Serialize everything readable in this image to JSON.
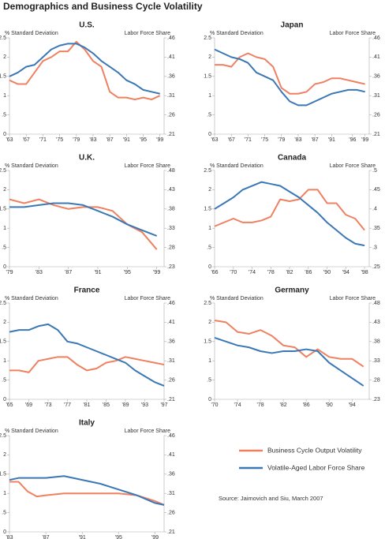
{
  "title": "Demographics and Business Cycle Volatility",
  "legend": [
    {
      "name": "Business Cycle Output Volatility",
      "color": "#ef8060"
    },
    {
      "name": "Volatile-Aged Labor Force Share",
      "color": "#3a78b5"
    }
  ],
  "source": "Source: Jaimovich and Siu, March 2007",
  "chart_data": [
    {
      "type": "line",
      "title": "U.S.",
      "ylabel": "% Standard Deviation",
      "y2label": "Labor Force Share",
      "x": [
        1963,
        1965,
        1967,
        1969,
        1971,
        1973,
        1975,
        1977,
        1979,
        1981,
        1983,
        1985,
        1987,
        1989,
        1991,
        1993,
        1995,
        1997,
        1999
      ],
      "xlim": [
        1963,
        2000
      ],
      "xticks": [
        {
          "value": 1963,
          "label": "'63"
        },
        {
          "value": 1967,
          "label": "'67"
        },
        {
          "value": 1971,
          "label": "'71"
        },
        {
          "value": 1975,
          "label": "'75"
        },
        {
          "value": 1979,
          "label": "'79"
        },
        {
          "value": 1983,
          "label": "'83"
        },
        {
          "value": 1987,
          "label": "'87"
        },
        {
          "value": 1991,
          "label": "'91"
        },
        {
          "value": 1995,
          "label": "'95"
        },
        {
          "value": 1999,
          "label": "'99"
        }
      ],
      "ylim": [
        0,
        2.5
      ],
      "yticks": [
        0,
        {
          "value": 0.5,
          "label": ".5"
        },
        1,
        1.5,
        2,
        2.5
      ],
      "y2lim": [
        0.21,
        0.46
      ],
      "y2ticks": [
        {
          "value": 0.21,
          "label": ".21"
        },
        {
          "value": 0.26,
          "label": ".26"
        },
        {
          "value": 0.31,
          "label": ".31"
        },
        {
          "value": 0.36,
          "label": ".36"
        },
        {
          "value": 0.41,
          "label": ".41"
        },
        {
          "value": 0.46,
          "label": ".46"
        }
      ],
      "series": [
        {
          "color": "#ef8060",
          "values": [
            1.4,
            1.3,
            1.3,
            1.6,
            1.9,
            2.0,
            2.15,
            2.15,
            2.4,
            2.2,
            1.9,
            1.75,
            1.1,
            0.95,
            0.95,
            0.9,
            0.95,
            0.9,
            1.0
          ]
        },
        {
          "color": "#3a78b5",
          "axis": "y2",
          "values": [
            0.36,
            0.37,
            0.385,
            0.39,
            0.41,
            0.43,
            0.44,
            0.445,
            0.445,
            0.435,
            0.42,
            0.4,
            0.385,
            0.37,
            0.35,
            0.34,
            0.325,
            0.32,
            0.315
          ]
        }
      ]
    },
    {
      "type": "line",
      "title": "Japan",
      "ylabel": "% Standard Deviation",
      "y2label": "Labor Force Share",
      "x": [
        1963,
        1965,
        1967,
        1969,
        1971,
        1973,
        1975,
        1977,
        1979,
        1981,
        1983,
        1985,
        1987,
        1989,
        1991,
        1993,
        1995,
        1997,
        1999
      ],
      "xlim": [
        1963,
        2000
      ],
      "xticks": [
        {
          "value": 1963,
          "label": "'63"
        },
        {
          "value": 1967,
          "label": "'67"
        },
        {
          "value": 1971,
          "label": "'71"
        },
        {
          "value": 1975,
          "label": "'75"
        },
        {
          "value": 1979,
          "label": "'79"
        },
        {
          "value": 1983,
          "label": "'83"
        },
        {
          "value": 1987,
          "label": "'87"
        },
        {
          "value": 1991,
          "label": "'91"
        },
        {
          "value": 1996,
          "label": "'96"
        },
        {
          "value": 1999,
          "label": "'99"
        }
      ],
      "ylim": [
        0,
        2.5
      ],
      "yticks": [
        0,
        {
          "value": 0.5,
          "label": ".5"
        },
        1,
        1.5,
        2,
        2.5
      ],
      "y2lim": [
        0.21,
        0.46
      ],
      "y2ticks": [
        {
          "value": 0.21,
          "label": ".21"
        },
        {
          "value": 0.26,
          "label": ".26"
        },
        {
          "value": 0.31,
          "label": ".31"
        },
        {
          "value": 0.36,
          "label": ".36"
        },
        {
          "value": 0.41,
          "label": ".41"
        },
        {
          "value": 0.46,
          "label": ".46"
        }
      ],
      "series": [
        {
          "color": "#ef8060",
          "values": [
            1.8,
            1.8,
            1.75,
            2.0,
            2.1,
            2.0,
            1.95,
            1.75,
            1.2,
            1.05,
            1.05,
            1.1,
            1.3,
            1.35,
            1.45,
            1.45,
            1.4,
            1.35,
            1.3
          ]
        },
        {
          "color": "#3a78b5",
          "axis": "y2",
          "values": [
            0.43,
            0.42,
            0.41,
            0.405,
            0.395,
            0.37,
            0.36,
            0.35,
            0.32,
            0.295,
            0.285,
            0.285,
            0.295,
            0.305,
            0.315,
            0.32,
            0.325,
            0.325,
            0.32
          ]
        }
      ]
    },
    {
      "type": "line",
      "title": "U.K.",
      "ylabel": "% Standard Deviation",
      "y2label": "Labor Force Share",
      "x": [
        1979,
        1981,
        1983,
        1985,
        1987,
        1989,
        1991,
        1993,
        1995,
        1997,
        1999
      ],
      "xlim": [
        1979,
        2000
      ],
      "xticks": [
        {
          "value": 1979,
          "label": "'79"
        },
        {
          "value": 1983,
          "label": "'83"
        },
        {
          "value": 1987,
          "label": "'87"
        },
        {
          "value": 1991,
          "label": "'91"
        },
        {
          "value": 1995,
          "label": "'95"
        },
        {
          "value": 1999,
          "label": "'99"
        }
      ],
      "ylim": [
        0,
        2.5
      ],
      "yticks": [
        0,
        {
          "value": 0.5,
          "label": ".5"
        },
        1,
        1.5,
        2,
        2.5
      ],
      "y2lim": [
        0.23,
        0.48
      ],
      "y2ticks": [
        {
          "value": 0.23,
          "label": ".23"
        },
        {
          "value": 0.28,
          "label": ".28"
        },
        {
          "value": 0.33,
          "label": ".33"
        },
        {
          "value": 0.38,
          "label": ".38"
        },
        {
          "value": 0.43,
          "label": ".43"
        },
        {
          "value": 0.48,
          "label": ".48"
        }
      ],
      "series": [
        {
          "color": "#ef8060",
          "values": [
            1.75,
            1.65,
            1.75,
            1.6,
            1.5,
            1.55,
            1.55,
            1.45,
            1.1,
            0.9,
            0.45
          ]
        },
        {
          "color": "#3a78b5",
          "axis": "y2",
          "values": [
            0.385,
            0.385,
            0.39,
            0.395,
            0.395,
            0.39,
            0.375,
            0.36,
            0.34,
            0.325,
            0.31
          ]
        }
      ]
    },
    {
      "type": "line",
      "title": "Canada",
      "ylabel": "% Standard Deviation",
      "y2label": "Labor Force Share",
      "x": [
        1966,
        1968,
        1970,
        1972,
        1974,
        1976,
        1978,
        1980,
        1982,
        1984,
        1986,
        1988,
        1990,
        1992,
        1994,
        1996,
        1998
      ],
      "xlim": [
        1966,
        1999
      ],
      "xticks": [
        {
          "value": 1966,
          "label": "'66"
        },
        {
          "value": 1970,
          "label": "'70"
        },
        {
          "value": 1974,
          "label": "'74"
        },
        {
          "value": 1978,
          "label": "'78"
        },
        {
          "value": 1982,
          "label": "'82"
        },
        {
          "value": 1986,
          "label": "'86"
        },
        {
          "value": 1990,
          "label": "'90"
        },
        {
          "value": 1994,
          "label": "'94"
        },
        {
          "value": 1998,
          "label": "'98"
        }
      ],
      "ylim": [
        0,
        2.5
      ],
      "yticks": [
        0,
        {
          "value": 0.5,
          "label": ".5"
        },
        1,
        1.5,
        2,
        2.5
      ],
      "y2lim": [
        0.25,
        0.5
      ],
      "y2ticks": [
        {
          "value": 0.25,
          "label": ".25"
        },
        {
          "value": 0.3,
          "label": ".3"
        },
        {
          "value": 0.35,
          "label": ".35"
        },
        {
          "value": 0.4,
          "label": ".4"
        },
        {
          "value": 0.45,
          "label": ".45"
        },
        {
          "value": 0.5,
          "label": ".5"
        }
      ],
      "series": [
        {
          "color": "#ef8060",
          "values": [
            1.05,
            1.15,
            1.25,
            1.15,
            1.15,
            1.2,
            1.3,
            1.75,
            1.7,
            1.75,
            2.0,
            2.0,
            1.65,
            1.65,
            1.35,
            1.25,
            0.95
          ]
        },
        {
          "color": "#3a78b5",
          "axis": "y2",
          "values": [
            0.4,
            0.415,
            0.43,
            0.45,
            0.46,
            0.47,
            0.465,
            0.46,
            0.445,
            0.43,
            0.41,
            0.39,
            0.365,
            0.345,
            0.325,
            0.31,
            0.305
          ]
        }
      ]
    },
    {
      "type": "line",
      "title": "France",
      "ylabel": "% Standard Deviation",
      "y2label": "Labor Force Share",
      "x": [
        1965,
        1967,
        1969,
        1971,
        1973,
        1975,
        1977,
        1979,
        1981,
        1983,
        1985,
        1987,
        1989,
        1991,
        1993,
        1995,
        1997
      ],
      "xlim": [
        1965,
        1997
      ],
      "xticks": [
        {
          "value": 1965,
          "label": "'65"
        },
        {
          "value": 1969,
          "label": "'69"
        },
        {
          "value": 1973,
          "label": "'73"
        },
        {
          "value": 1977,
          "label": "'77"
        },
        {
          "value": 1981,
          "label": "'81"
        },
        {
          "value": 1985,
          "label": "'85"
        },
        {
          "value": 1989,
          "label": "'89"
        },
        {
          "value": 1993,
          "label": "'93"
        },
        {
          "value": 1997,
          "label": "'97"
        }
      ],
      "ylim": [
        0,
        2.5
      ],
      "yticks": [
        0,
        {
          "value": 0.5,
          "label": ".5"
        },
        1,
        1.5,
        2,
        2.5
      ],
      "y2lim": [
        0.21,
        0.46
      ],
      "y2ticks": [
        {
          "value": 0.21,
          "label": ".21"
        },
        {
          "value": 0.26,
          "label": ".26"
        },
        {
          "value": 0.31,
          "label": ".31"
        },
        {
          "value": 0.36,
          "label": ".36"
        },
        {
          "value": 0.41,
          "label": ".41"
        },
        {
          "value": 0.46,
          "label": ".46"
        }
      ],
      "series": [
        {
          "color": "#ef8060",
          "values": [
            0.75,
            0.75,
            0.7,
            1.0,
            1.05,
            1.1,
            1.1,
            0.9,
            0.75,
            0.8,
            0.95,
            1.0,
            1.1,
            1.05,
            1.0,
            0.95,
            0.9
          ]
        },
        {
          "color": "#3a78b5",
          "axis": "y2",
          "values": [
            0.385,
            0.39,
            0.39,
            0.4,
            0.405,
            0.39,
            0.36,
            0.355,
            0.345,
            0.335,
            0.325,
            0.315,
            0.305,
            0.285,
            0.27,
            0.255,
            0.245
          ]
        }
      ]
    },
    {
      "type": "line",
      "title": "Germany",
      "ylabel": "% Standard Deviation",
      "y2label": "Labor Force Share",
      "x": [
        1970,
        1972,
        1974,
        1976,
        1978,
        1980,
        1982,
        1984,
        1986,
        1988,
        1990,
        1992,
        1994,
        1996
      ],
      "xlim": [
        1970,
        1997
      ],
      "xticks": [
        {
          "value": 1970,
          "label": "'70"
        },
        {
          "value": 1974,
          "label": "'74"
        },
        {
          "value": 1978,
          "label": "'78"
        },
        {
          "value": 1982,
          "label": "'82"
        },
        {
          "value": 1986,
          "label": "'86"
        },
        {
          "value": 1990,
          "label": "'90"
        },
        {
          "value": 1994,
          "label": "'94"
        }
      ],
      "ylim": [
        0,
        2.5
      ],
      "yticks": [
        0,
        {
          "value": 0.5,
          "label": ".5"
        },
        1,
        1.5,
        2,
        2.5
      ],
      "y2lim": [
        0.23,
        0.48
      ],
      "y2ticks": [
        {
          "value": 0.23,
          "label": ".23"
        },
        {
          "value": 0.28,
          "label": ".28"
        },
        {
          "value": 0.33,
          "label": ".33"
        },
        {
          "value": 0.38,
          "label": ".38"
        },
        {
          "value": 0.43,
          "label": ".43"
        },
        {
          "value": 0.48,
          "label": ".48"
        }
      ],
      "series": [
        {
          "color": "#ef8060",
          "values": [
            2.05,
            2.0,
            1.75,
            1.7,
            1.8,
            1.65,
            1.4,
            1.35,
            1.1,
            1.3,
            1.1,
            1.05,
            1.05,
            0.85
          ]
        },
        {
          "color": "#3a78b5",
          "axis": "y2",
          "values": [
            0.39,
            0.38,
            0.37,
            0.365,
            0.355,
            0.35,
            0.355,
            0.355,
            0.36,
            0.355,
            0.325,
            0.305,
            0.285,
            0.265
          ]
        }
      ]
    },
    {
      "type": "line",
      "title": "Italy",
      "ylabel": "% Standard Deviation",
      "y2label": "Labor Force Share",
      "x": [
        1983,
        1984,
        1985,
        1986,
        1987,
        1989,
        1991,
        1993,
        1995,
        1997,
        1999,
        2000
      ],
      "xlim": [
        1983,
        2000
      ],
      "xticks": [
        {
          "value": 1983,
          "label": "'83"
        },
        {
          "value": 1987,
          "label": "'87"
        },
        {
          "value": 1991,
          "label": "'91"
        },
        {
          "value": 1995,
          "label": "'95"
        },
        {
          "value": 1999,
          "label": "'99"
        }
      ],
      "ylim": [
        0,
        2.5
      ],
      "yticks": [
        0,
        {
          "value": 0.5,
          "label": ".5"
        },
        1,
        1.5,
        2,
        2.5
      ],
      "y2lim": [
        0.21,
        0.46
      ],
      "y2ticks": [
        {
          "value": 0.21,
          "label": ".21"
        },
        {
          "value": 0.26,
          "label": ".26"
        },
        {
          "value": 0.31,
          "label": ".31"
        },
        {
          "value": 0.36,
          "label": ".36"
        },
        {
          "value": 0.41,
          "label": ".41"
        },
        {
          "value": 0.46,
          "label": ".46"
        }
      ],
      "series": [
        {
          "color": "#ef8060",
          "values": [
            1.3,
            1.3,
            1.05,
            0.92,
            0.95,
            1.0,
            1.0,
            1.0,
            1.0,
            0.95,
            0.8,
            0.7
          ]
        },
        {
          "color": "#3a78b5",
          "axis": "y2",
          "values": [
            0.345,
            0.35,
            0.35,
            0.35,
            0.35,
            0.355,
            0.345,
            0.335,
            0.32,
            0.305,
            0.285,
            0.28
          ]
        }
      ]
    }
  ]
}
